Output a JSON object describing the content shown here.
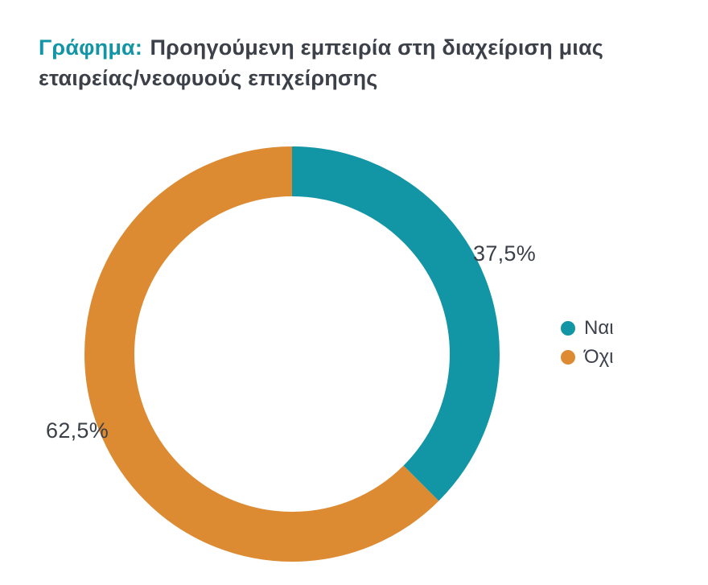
{
  "title": {
    "prefix": "Γράφημα:",
    "text": "Προηγούμενη εμπειρία στη διαχείριση μιας εταιρείας/νεοφυούς επιχείρησης"
  },
  "chart_data": {
    "type": "pie",
    "subtype": "donut",
    "title": "Γράφημα: Προηγούμενη εμπειρία στη διαχείριση μιας εταιρείας/νεοφυούς επιχείρησης",
    "categories": [
      "Ναι",
      "Όχι"
    ],
    "values": [
      37.5,
      62.5
    ],
    "value_labels": [
      "37,5%",
      "62,5%"
    ],
    "colors": [
      "#1295a5",
      "#dd8b33"
    ],
    "start_angle_deg": 0,
    "direction": "clockwise",
    "legend_position": "right",
    "grid": false
  },
  "colors": {
    "accent_teal": "#1295a5",
    "accent_orange": "#dd8b33",
    "text_dark": "#3c4049",
    "background": "#ffffff"
  }
}
